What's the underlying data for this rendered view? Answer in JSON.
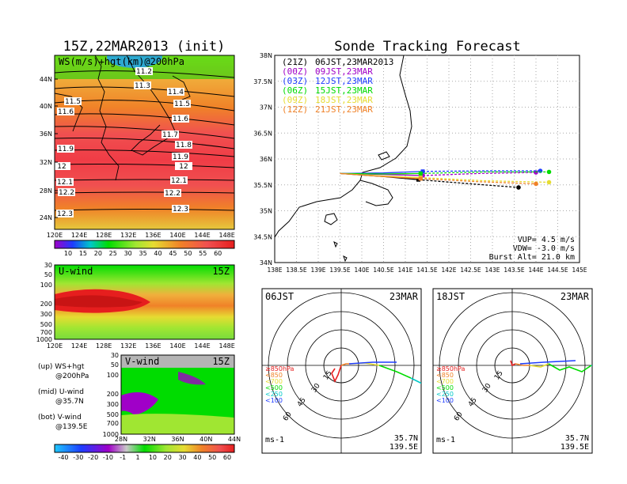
{
  "left_title": "15Z,22MAR2013 (init)",
  "right_title": "Sonde Tracking Forecast",
  "map_panel": {
    "label": "WS(m/s)+hgt(km)@200hPa",
    "lat_ticks": [
      "44N",
      "40N",
      "36N",
      "32N",
      "28N",
      "24N"
    ],
    "lon_ticks": [
      "120E",
      "124E",
      "128E",
      "132E",
      "136E",
      "140E",
      "144E",
      "148E"
    ],
    "contour_labels": [
      "11.2",
      "11.3",
      "11.4",
      "11.5",
      "11.5",
      "11.6",
      "11.6",
      "11.7",
      "11.8",
      "11.9",
      "11.9",
      "12",
      "12",
      "12.1",
      "12.1",
      "12.2",
      "12.2",
      "12.3",
      "12.3"
    ],
    "colorbar_labels": [
      "10",
      "15",
      "20",
      "25",
      "30",
      "35",
      "40",
      "45",
      "50",
      "55",
      "60"
    ]
  },
  "uwind_panel": {
    "label": "U-wind",
    "time": "15Z",
    "p_ticks": [
      "30",
      "50",
      "100",
      "200",
      "300",
      "500",
      "700",
      "1000"
    ],
    "lon_ticks": [
      "120E",
      "124E",
      "128E",
      "132E",
      "136E",
      "140E",
      "144E",
      "148E"
    ]
  },
  "vwind_panel": {
    "label": "V-wind",
    "time": "15Z",
    "p_ticks": [
      "30",
      "50",
      "100",
      "200",
      "300",
      "500",
      "700",
      "1000"
    ],
    "lat_ticks": [
      "28N",
      "32N",
      "36N",
      "40N",
      "44N"
    ]
  },
  "legend_notes": [
    {
      "a": "(up) WS+hgt",
      "b": "@200hPa"
    },
    {
      "a": "(mid) U-wind",
      "b": "@35.7N"
    },
    {
      "a": "(bot) V-wind",
      "b": "@139.5E"
    }
  ],
  "bottom_colorbar_labels": [
    "-40",
    "-30",
    "-20",
    "-10",
    "-1",
    "1",
    "10",
    "20",
    "30",
    "40",
    "50",
    "60"
  ],
  "tracking": {
    "lat_ticks": [
      "38N",
      "37.5N",
      "37N",
      "36.5N",
      "36N",
      "35.5N",
      "35N",
      "34.5N",
      "34N"
    ],
    "lon_ticks": [
      "138E",
      "138.5E",
      "139E",
      "139.5E",
      "140E",
      "140.5E",
      "141E",
      "141.5E",
      "142E",
      "142.5E",
      "143E",
      "143.5E",
      "144E",
      "144.5E",
      "145E"
    ],
    "launch_legend": [
      {
        "utc": "(21Z)",
        "jst": "06JST,23MAR2013",
        "color": "#000000"
      },
      {
        "utc": "(00Z)",
        "jst": "09JST,23MAR",
        "color": "#a000c8"
      },
      {
        "utc": "(03Z)",
        "jst": "12JST,23MAR",
        "color": "#1e3cff"
      },
      {
        "utc": "(06Z)",
        "jst": "15JST,23MAR",
        "color": "#00dc00"
      },
      {
        "utc": "(09Z)",
        "jst": "18JST,23MAR",
        "color": "#e6dc32"
      },
      {
        "utc": "(12Z)",
        "jst": "21JST,23MAR",
        "color": "#f08228"
      }
    ],
    "params": {
      "vup": "VUP= 4.5 m/s",
      "vdw": "VDW= -3.0 m/s",
      "burst": "Burst Alt= 21.0 km"
    }
  },
  "hodographs": [
    {
      "time": "06JST",
      "date": "23MAR",
      "lat": "35.7N",
      "lon": "139.5E",
      "unit": "ms-1",
      "ring_labels": [
        "15",
        "30",
        "45",
        "60"
      ]
    },
    {
      "time": "18JST",
      "date": "23MAR",
      "lat": "35.7N",
      "lon": "139.5E",
      "unit": "ms-1",
      "ring_labels": [
        "15",
        "30",
        "45",
        "60"
      ]
    }
  ],
  "hodo_legend": [
    {
      "label": "≥850hPa",
      "color": "#e61e1e"
    },
    {
      "label": "<850",
      "color": "#f08228"
    },
    {
      "label": "<700",
      "color": "#e6dc32"
    },
    {
      "label": "<500",
      "color": "#00dc00"
    },
    {
      "label": "<250",
      "color": "#00c8c8"
    },
    {
      "label": "<100",
      "color": "#1e3cff"
    }
  ],
  "chart_data": {
    "type": "line",
    "title": "Sonde Tracking Forecast",
    "xlim": [
      138,
      145
    ],
    "ylim": [
      34,
      38
    ],
    "launch_point": [
      139.5,
      35.72
    ],
    "series": [
      {
        "name": "(21Z) 06JST,23MAR2013",
        "color": "#000000",
        "burst": [
          141.3,
          35.6
        ],
        "land": [
          143.6,
          35.45
        ],
        "x": [
          139.5,
          140.5,
          141.3,
          142.5,
          143.6
        ],
        "y": [
          35.72,
          35.66,
          35.6,
          35.52,
          35.45
        ]
      },
      {
        "name": "(00Z) 09JST,23MAR",
        "color": "#a000c8",
        "burst": [
          141.4,
          35.68
        ],
        "land": [
          144.0,
          35.74
        ],
        "x": [
          139.5,
          140.5,
          141.4,
          142.7,
          144.0
        ],
        "y": [
          35.72,
          35.7,
          35.68,
          35.72,
          35.74
        ]
      },
      {
        "name": "(03Z) 12JST,23MAR",
        "color": "#1e3cff",
        "burst": [
          141.4,
          35.76
        ],
        "land": [
          144.1,
          35.77
        ],
        "x": [
          139.5,
          140.5,
          141.4,
          142.8,
          144.1
        ],
        "y": [
          35.72,
          35.73,
          35.76,
          35.77,
          35.77
        ]
      },
      {
        "name": "(06Z) 15JST,23MAR",
        "color": "#00dc00",
        "burst": [
          141.35,
          35.72
        ],
        "land": [
          144.3,
          35.75
        ],
        "x": [
          139.5,
          140.5,
          141.35,
          142.8,
          144.3
        ],
        "y": [
          35.72,
          35.71,
          35.72,
          35.75,
          35.75
        ]
      },
      {
        "name": "(09Z) 18JST,23MAR",
        "color": "#e6dc32",
        "burst": [
          141.35,
          35.64
        ],
        "land": [
          144.3,
          35.55
        ],
        "x": [
          139.5,
          140.5,
          141.35,
          142.8,
          144.3
        ],
        "y": [
          35.72,
          35.67,
          35.64,
          35.58,
          35.55
        ]
      },
      {
        "name": "(12Z) 21JST,23MAR",
        "color": "#f08228",
        "burst": [
          141.35,
          35.62
        ],
        "land": [
          144.0,
          35.52
        ],
        "x": [
          139.5,
          140.5,
          141.35,
          142.7,
          144.0
        ],
        "y": [
          35.72,
          35.66,
          35.62,
          35.56,
          35.52
        ]
      }
    ]
  }
}
